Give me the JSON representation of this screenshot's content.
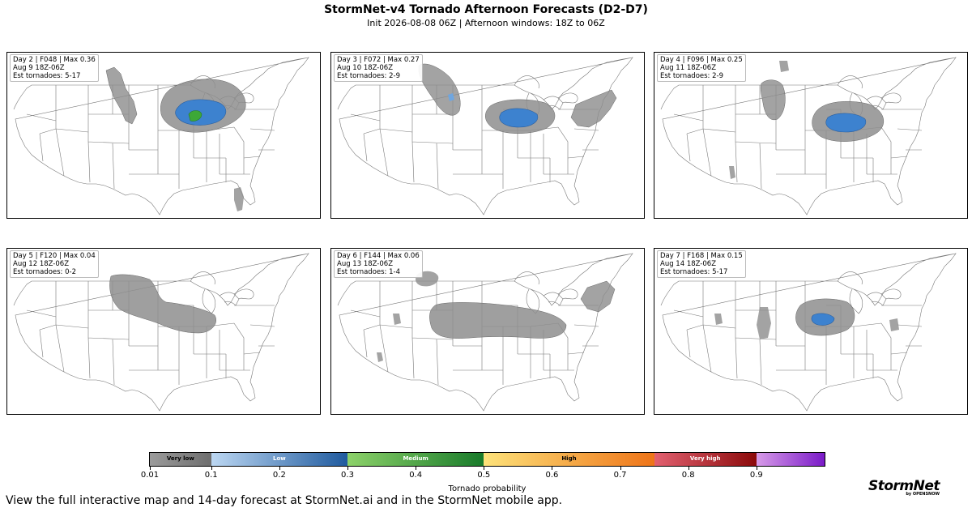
{
  "title": "StormNet-v4 Tornado Afternoon Forecasts (D2-D7)",
  "subtitle": "Init 2026-08-08 06Z | Afternoon windows: 18Z to 06Z",
  "panels": [
    {
      "line1": "Day 2 | F048 | Max 0.36",
      "line2": "Aug 9 18Z-06Z",
      "line3": "Est tornadoes: 5-17"
    },
    {
      "line1": "Day 3 | F072 | Max 0.27",
      "line2": "Aug 10 18Z-06Z",
      "line3": "Est tornadoes: 2-9"
    },
    {
      "line1": "Day 4 | F096 | Max 0.25",
      "line2": "Aug 11 18Z-06Z",
      "line3": "Est tornadoes: 2-9"
    },
    {
      "line1": "Day 5 | F120 | Max 0.04",
      "line2": "Aug 12 18Z-06Z",
      "line3": "Est tornadoes: 0-2"
    },
    {
      "line1": "Day 6 | F144 | Max 0.06",
      "line2": "Aug 13 18Z-06Z",
      "line3": "Est tornadoes: 1-4"
    },
    {
      "line1": "Day 7 | F168 | Max 0.15",
      "line2": "Aug 14 18Z-06Z",
      "line3": "Est tornadoes: 5-17"
    }
  ],
  "colorbar": {
    "categories": [
      {
        "label": "Very low",
        "from": 0.01,
        "to": 0.1,
        "color_start": "#9b9b9b",
        "color_end": "#6e6e6e",
        "label_color": "#000000"
      },
      {
        "label": "Low",
        "from": 0.1,
        "to": 0.3,
        "color_start": "#bcd7f2",
        "color_end": "#1f5a9e",
        "label_color": "#ffffff"
      },
      {
        "label": "Medium",
        "from": 0.3,
        "to": 0.5,
        "color_start": "#8dd26a",
        "color_end": "#187a2a",
        "label_color": "#ffffff"
      },
      {
        "label": "High",
        "from": 0.5,
        "to": 0.75,
        "color_start": "#fde27a",
        "color_end": "#ee7418",
        "label_color": "#000000"
      },
      {
        "label": "Very high",
        "from": 0.75,
        "to": 0.9,
        "color_start": "#e26070",
        "color_end": "#8b0a0a",
        "label_color": "#ffffff"
      },
      {
        "label": "",
        "from": 0.9,
        "to": 1.0,
        "color_start": "#d79be8",
        "color_end": "#7a1ac8",
        "label_color": "#ffffff"
      }
    ],
    "ticks": [
      "0.01",
      "0.1",
      "0.2",
      "0.3",
      "0.4",
      "0.5",
      "0.6",
      "0.7",
      "0.8",
      "0.9"
    ],
    "tick_values": [
      0.01,
      0.1,
      0.2,
      0.3,
      0.4,
      0.5,
      0.6,
      0.7,
      0.8,
      0.9
    ],
    "range": [
      0.01,
      1.0
    ],
    "label": "Tornado probability"
  },
  "footer": "View the full interactive map and 14-day forecast at StormNet.ai and in the StormNet mobile app.",
  "logo": {
    "name": "StormNet",
    "sub": "by OPENSNOW"
  }
}
